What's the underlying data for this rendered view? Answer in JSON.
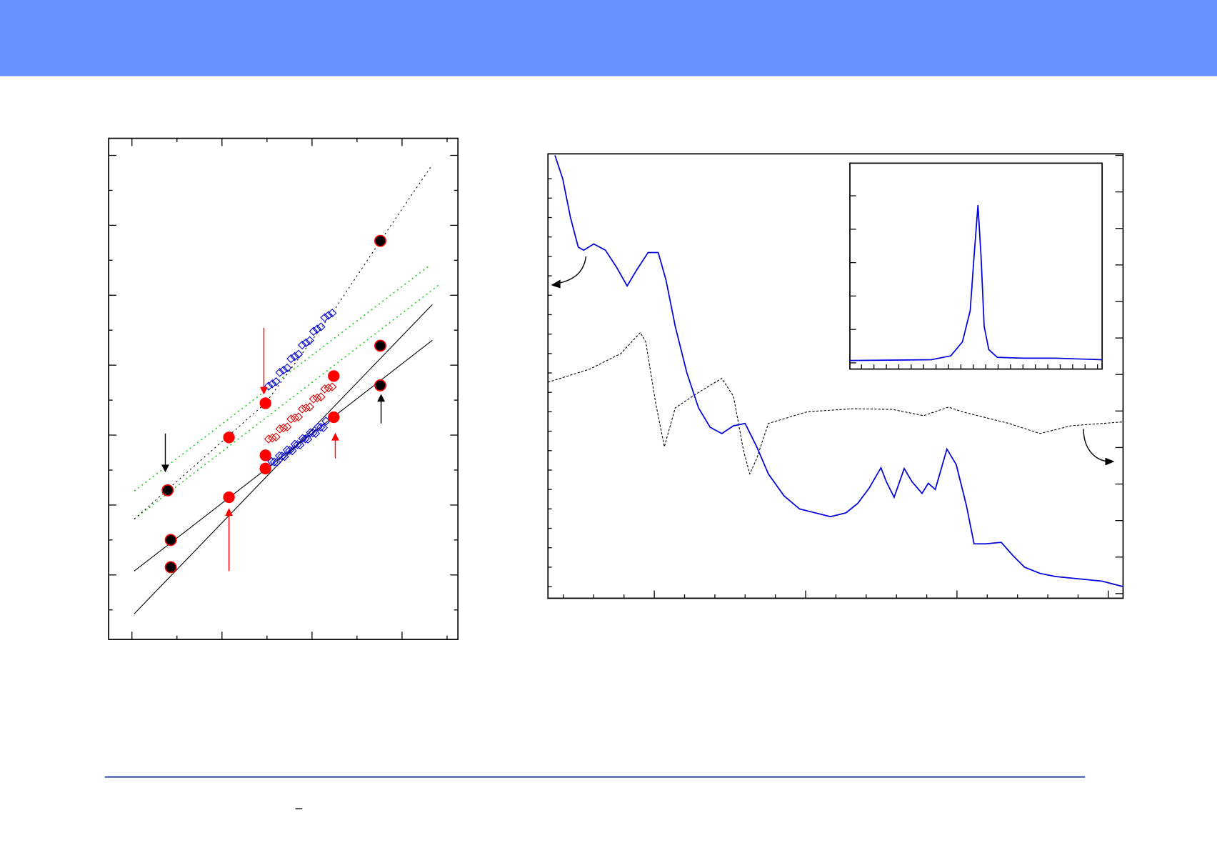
{
  "footer": {
    "mark": "–"
  }
}
